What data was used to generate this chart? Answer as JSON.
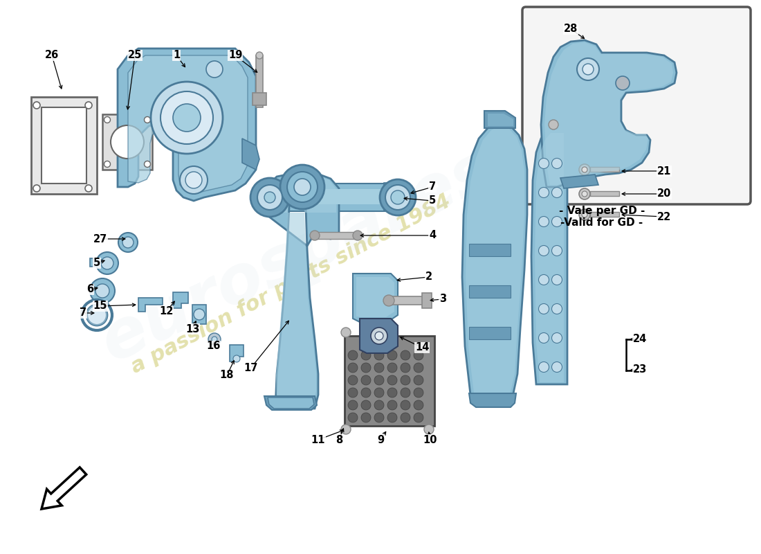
{
  "bg_color": "#ffffff",
  "main_blue": "#8bbdd4",
  "mid_blue": "#a5cfe0",
  "dark_blue": "#6a9cb8",
  "light_blue": "#c2dcea",
  "very_light_blue": "#daeaf4",
  "gray_part": "#b0b8c0",
  "dark_gray": "#707880",
  "rubber_gray": "#888888",
  "rubber_hole": "#555560",
  "outline": "#4a7a98",
  "watermark_color": "#ccc86a",
  "label_fs": 10.5,
  "note_line1": "- Vale per GD -",
  "note_line2": "-Valid for GD -"
}
